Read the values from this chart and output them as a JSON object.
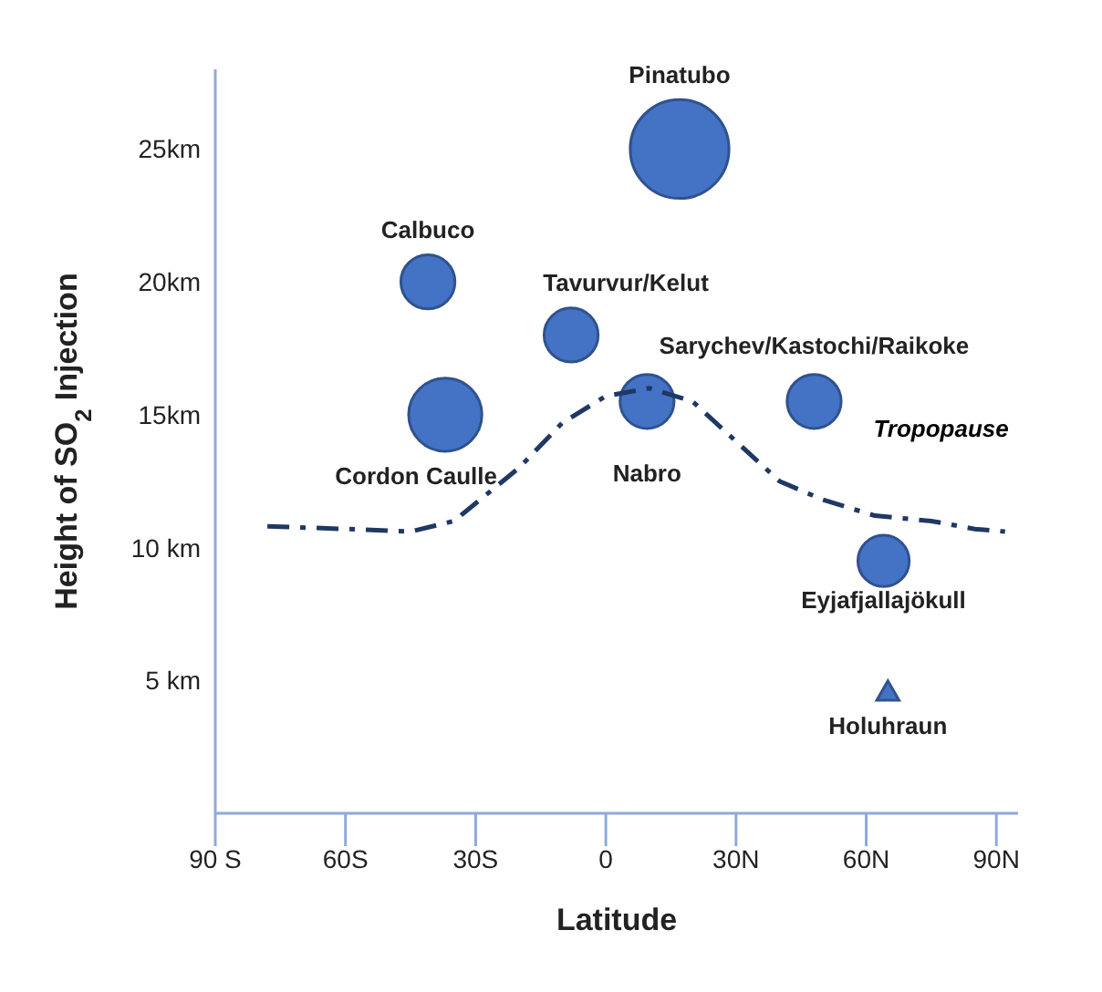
{
  "chart_data": {
    "type": "bubble",
    "xlabel": "Latitude",
    "ylabel": "Height of SO$_{2}$ Injection",
    "xlim": [
      -90,
      95
    ],
    "xticks": [
      {
        "value": -90,
        "label": "90 S"
      },
      {
        "value": -60,
        "label": "60S"
      },
      {
        "value": -30,
        "label": "30S"
      },
      0,
      {
        "value": 30,
        "label": "30N"
      },
      {
        "value": 60,
        "label": "60N"
      },
      {
        "value": 90,
        "label": "90N"
      }
    ],
    "ylim": [
      0,
      28
    ],
    "yticks": [
      {
        "value": 5,
        "label": "5 km"
      },
      {
        "value": 10,
        "label": "10 km"
      },
      {
        "value": 15,
        "label": "15km"
      },
      {
        "value": 20,
        "label": "20km"
      },
      {
        "value": 25,
        "label": "25km"
      }
    ],
    "grid": false,
    "legend": false,
    "series": [
      {
        "color": "#4472c4",
        "x": [
          17,
          -41,
          -37,
          -8,
          9.5,
          48,
          64
        ],
        "values": [
          25,
          20,
          15,
          18,
          15.5,
          15.5,
          9.5
        ],
        "sizes": [
          1,
          0.3,
          0.55,
          0.3,
          0.3,
          0.3,
          0.27
        ]
      },
      {
        "type": "scatter",
        "marker": "triangle",
        "color": "#4472c4",
        "x": [
          65
        ],
        "values": [
          4.5
        ]
      },
      {
        "type": "line",
        "name": "Tropopause",
        "color": "#1f3864",
        "line_style": "dashed",
        "marker": "none",
        "x": [
          -78,
          -60,
          -45,
          -35,
          -20,
          -10,
          0,
          10,
          20,
          30,
          40,
          50,
          62,
          75,
          85,
          92
        ],
        "values": [
          10.8,
          10.7,
          10.6,
          11,
          13,
          14.7,
          15.7,
          16,
          15.5,
          14,
          12.5,
          11.8,
          11.2,
          11,
          10.7,
          10.6
        ]
      }
    ],
    "annotations": [
      {
        "text": "Pinatubo",
        "x": 17,
        "y": 25
      },
      {
        "text": "Calbuco",
        "x": -41,
        "y": 20
      },
      {
        "text": "Cordon Caulle",
        "x": -37,
        "y": 15
      },
      {
        "text": "Tavurvur/Kelut",
        "x": -8,
        "y": 18
      },
      {
        "text": "Nabro",
        "x": 9.5,
        "y": 15.5
      },
      {
        "text": "Sarychev/Kastochi/Raikoke",
        "x": 48,
        "y": 15.5
      },
      {
        "text": "Eyjafjallajökull",
        "x": 64,
        "y": 9.5
      },
      {
        "text": "Holuhraun",
        "x": 65,
        "y": 4.5
      }
    ]
  }
}
